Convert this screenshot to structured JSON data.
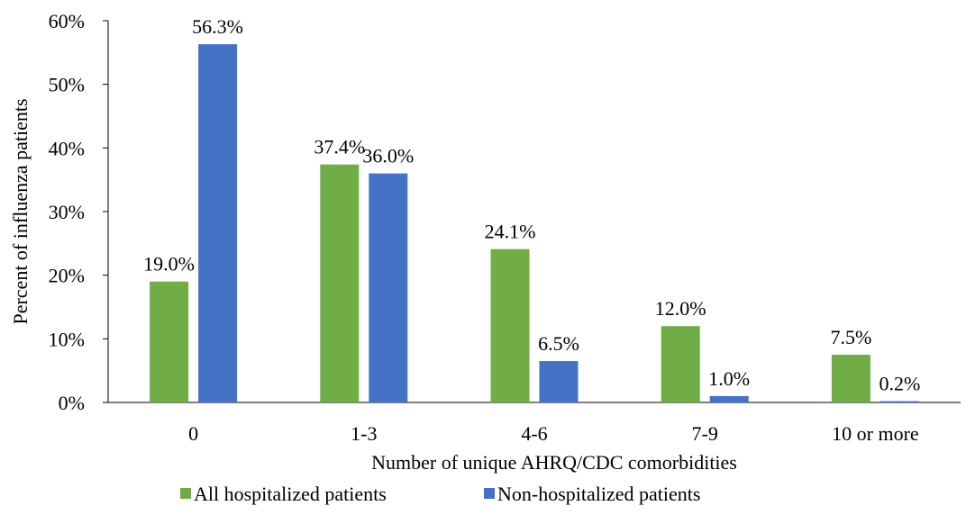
{
  "chart_data": {
    "type": "bar",
    "x_label": "Number of unique AHRQ/CDC comorbidities",
    "y_label": "Percent of influenza patients",
    "categories": [
      "0",
      "1-3",
      "4-6",
      "7-9",
      "10 or more"
    ],
    "series": [
      {
        "name": "All hospitalized patients",
        "color": "#70ad47",
        "values": [
          19.0,
          37.4,
          24.1,
          12.0,
          7.5
        ],
        "value_labels": [
          "19.0%",
          "37.4%",
          "24.1%",
          "12.0%",
          "7.5%"
        ]
      },
      {
        "name": "Non-hospitalized patients",
        "color": "#4472c4",
        "values": [
          56.3,
          36.0,
          6.5,
          1.0,
          0.2
        ],
        "value_labels": [
          "56.3%",
          "36.0%",
          "6.5%",
          "1.0%",
          "0.2%"
        ]
      }
    ],
    "ylim": [
      0,
      60
    ],
    "yticks": [
      {
        "value": 0,
        "label": "0%"
      },
      {
        "value": 10,
        "label": "10%"
      },
      {
        "value": 20,
        "label": "20%"
      },
      {
        "value": 30,
        "label": "30%"
      },
      {
        "value": 40,
        "label": "40%"
      },
      {
        "value": 50,
        "label": "50%"
      },
      {
        "value": 60,
        "label": "60%"
      }
    ],
    "legend": "bottom"
  }
}
